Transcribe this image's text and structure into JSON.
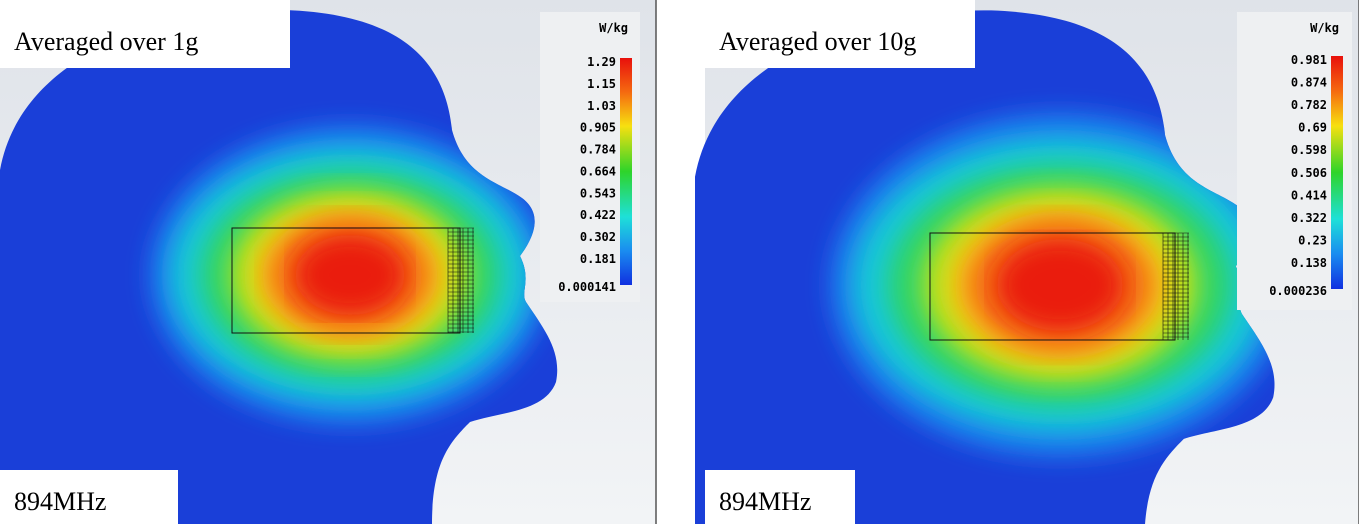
{
  "panels": [
    {
      "caption": "Averaged over 1g",
      "frequency": "894MHz",
      "unit": "W/kg",
      "scale_labels": [
        "1.29",
        "1.15",
        "1.03",
        "0.905",
        "0.784",
        "0.664",
        "0.543",
        "0.422",
        "0.302",
        "0.181",
        "0.000141"
      ]
    },
    {
      "caption": "Averaged over 10g",
      "frequency": "894MHz",
      "unit": "W/kg",
      "scale_labels": [
        "0.981",
        "0.874",
        "0.782",
        "0.69",
        "0.598",
        "0.506",
        "0.414",
        "0.322",
        "0.23",
        "0.138",
        "0.000236"
      ]
    }
  ]
}
